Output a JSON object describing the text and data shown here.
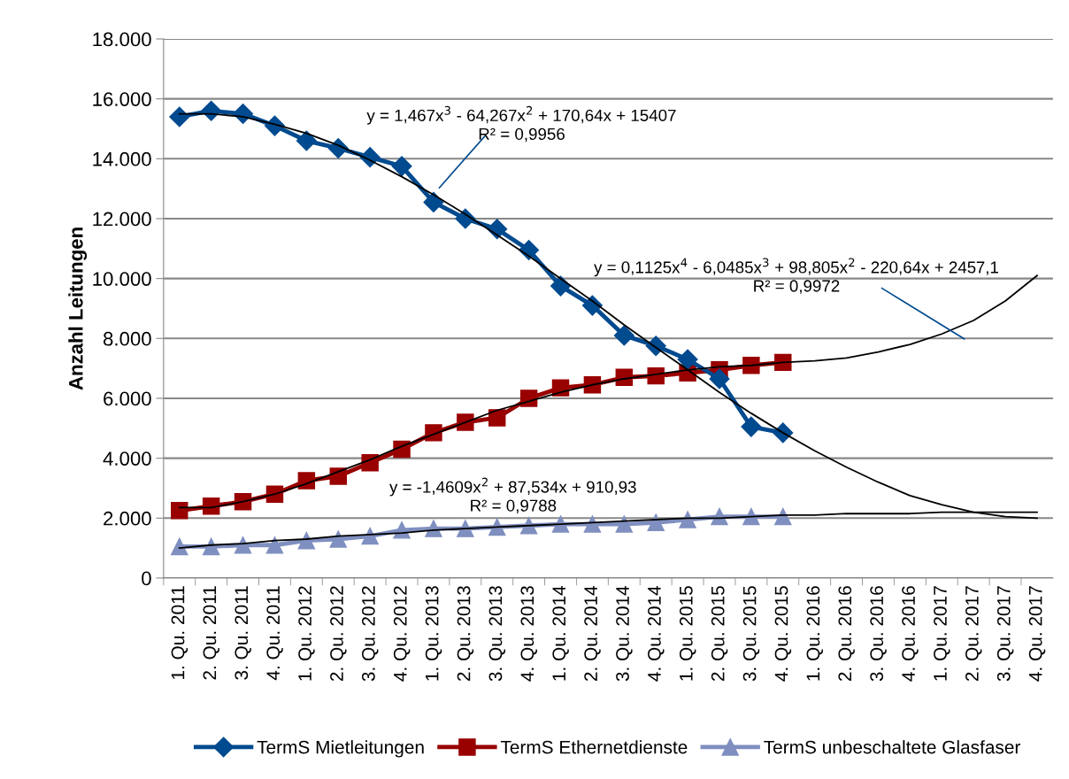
{
  "chart_data": {
    "type": "line",
    "ylabel": "Anzahl Leitungen",
    "categories": [
      "1. Qu. 2011",
      "2. Qu. 2011",
      "3. Qu. 2011",
      "4. Qu. 2011",
      "1. Qu. 2012",
      "2. Qu. 2012",
      "3. Qu. 2012",
      "4. Qu. 2012",
      "1. Qu. 2013",
      "2. Qu. 2013",
      "3. Qu. 2013",
      "4. Qu. 2013",
      "1. Qu. 2014",
      "2. Qu. 2014",
      "3. Qu. 2014",
      "4. Qu. 2014",
      "1. Qu. 2015",
      "2. Qu. 2015",
      "3. Qu. 2015",
      "4. Qu. 2015",
      "1. Qu. 2016",
      "2. Qu. 2016",
      "3. Qu. 2016",
      "4. Qu. 2016",
      "1. Qu. 2017",
      "2. Qu. 2017",
      "3. Qu. 2017",
      "4. Qu. 2017"
    ],
    "series": [
      {
        "name": "TermS Mietleitungen",
        "color": "#004a8f",
        "marker": "diamond",
        "values": [
          15400,
          15600,
          15500,
          15100,
          14600,
          14350,
          14050,
          13750,
          12550,
          12000,
          11650,
          10950,
          9750,
          9100,
          8100,
          7750,
          7300,
          6650,
          5050,
          4850,
          null,
          null,
          null,
          null,
          null,
          null,
          null,
          null
        ]
      },
      {
        "name": "TermS Ethernetdienste",
        "color": "#990000",
        "marker": "square",
        "values": [
          2250,
          2400,
          2550,
          2800,
          3250,
          3400,
          3850,
          4300,
          4850,
          5200,
          5350,
          6000,
          6350,
          6450,
          6700,
          6750,
          6850,
          6950,
          7100,
          7200,
          null,
          null,
          null,
          null,
          null,
          null,
          null,
          null
        ]
      },
      {
        "name": "TermS unbeschaltete Glasfaser",
        "color": "#7f8fc0",
        "marker": "triangle",
        "values": [
          1050,
          1050,
          1100,
          1100,
          1250,
          1300,
          1400,
          1600,
          1650,
          1650,
          1700,
          1750,
          1800,
          1800,
          1800,
          1850,
          1950,
          2050,
          2050,
          2050,
          null,
          null,
          null,
          null,
          null,
          null,
          null,
          null
        ]
      },
      {
        "color": "#000000",
        "marker": "none",
        "values": [
          15500,
          15500,
          15400,
          15150,
          14850,
          14450,
          13950,
          13400,
          12800,
          12150,
          11450,
          10750,
          10000,
          9250,
          8450,
          7700,
          6950,
          6200,
          5500,
          4850,
          4250,
          3700,
          3200,
          2750,
          2450,
          2200,
          2050,
          2000
        ]
      },
      {
        "color": "#000000",
        "marker": "none",
        "values": [
          2350,
          2350,
          2550,
          2800,
          3150,
          3550,
          3950,
          4400,
          4800,
          5200,
          5600,
          5900,
          6200,
          6450,
          6650,
          6800,
          6950,
          7050,
          7100,
          7200,
          7250,
          7350,
          7550,
          7800,
          8150,
          8600,
          9250,
          10100
        ]
      },
      {
        "color": "#000000",
        "marker": "none",
        "values": [
          1000,
          1100,
          1150,
          1250,
          1300,
          1400,
          1450,
          1500,
          1600,
          1650,
          1700,
          1750,
          1800,
          1850,
          1900,
          1950,
          2000,
          2000,
          2050,
          2100,
          2100,
          2150,
          2150,
          2150,
          2200,
          2200,
          2200,
          2200
        ]
      }
    ],
    "ylim": [
      0,
      18000
    ],
    "yticks": [
      {
        "value": 0,
        "label": "0"
      },
      {
        "value": 2000,
        "label": "2.000"
      },
      {
        "value": 4000,
        "label": "4.000"
      },
      {
        "value": 6000,
        "label": "6.000"
      },
      {
        "value": 8000,
        "label": "8.000"
      },
      {
        "value": 10000,
        "label": "10.000"
      },
      {
        "value": 12000,
        "label": "12.000"
      },
      {
        "value": 14000,
        "label": "14.000"
      },
      {
        "value": 16000,
        "label": "16.000"
      },
      {
        "value": 18000,
        "label": "18.000"
      }
    ],
    "grid": "y",
    "legend": "bottom",
    "line_style": "solid",
    "annotations": [
      "y = 1,467x$^{3}$ - 64,267x$^{2}$ + 170,64x + 15407\nR² = 0,9956",
      "y = 0,1125x$^{4}$ - 6,0485x$^{3}$ + 98,805x$^{2}$ - 220,64x + 2457,1\nR² = 0,9972",
      "y = -1,4609x$^{2}$ + 87,534x + 910,93\nR² = 0,9788"
    ]
  }
}
